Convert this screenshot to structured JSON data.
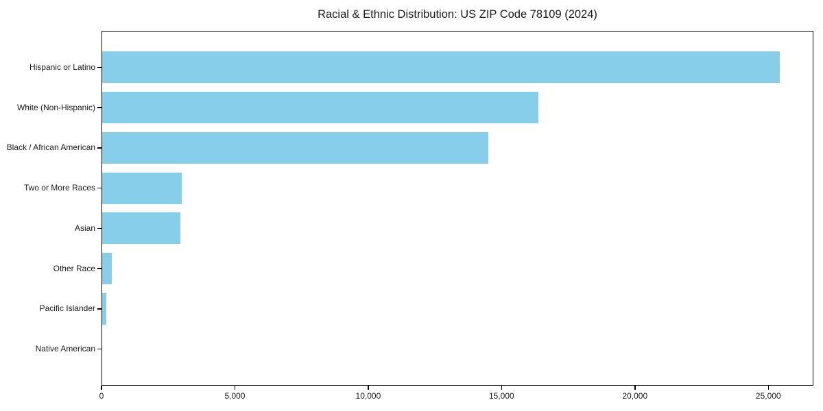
{
  "chart_data": {
    "type": "bar",
    "orientation": "horizontal",
    "title": "Racial & Ethnic Distribution: US ZIP Code 78109 (2024)",
    "categories": [
      "Hispanic or Latino",
      "White (Non-Hispanic)",
      "Black / African American",
      "Two or More Races",
      "Asian",
      "Other Race",
      "Pacific Islander",
      "Native American"
    ],
    "values": [
      25420,
      16380,
      14500,
      3020,
      2970,
      375,
      190,
      30
    ],
    "xlabel": "",
    "ylabel": "",
    "xlim": [
      0,
      26690
    ],
    "xticks": [
      0,
      5000,
      10000,
      15000,
      20000,
      25000
    ],
    "xtick_labels": [
      "0",
      "5,000",
      "10,000",
      "15,000",
      "20,000",
      "25,000"
    ],
    "bar_color": "#87CEEB",
    "axis_color": "#000000",
    "text_color": "#1a1a1a",
    "grid": false,
    "legend": null
  }
}
